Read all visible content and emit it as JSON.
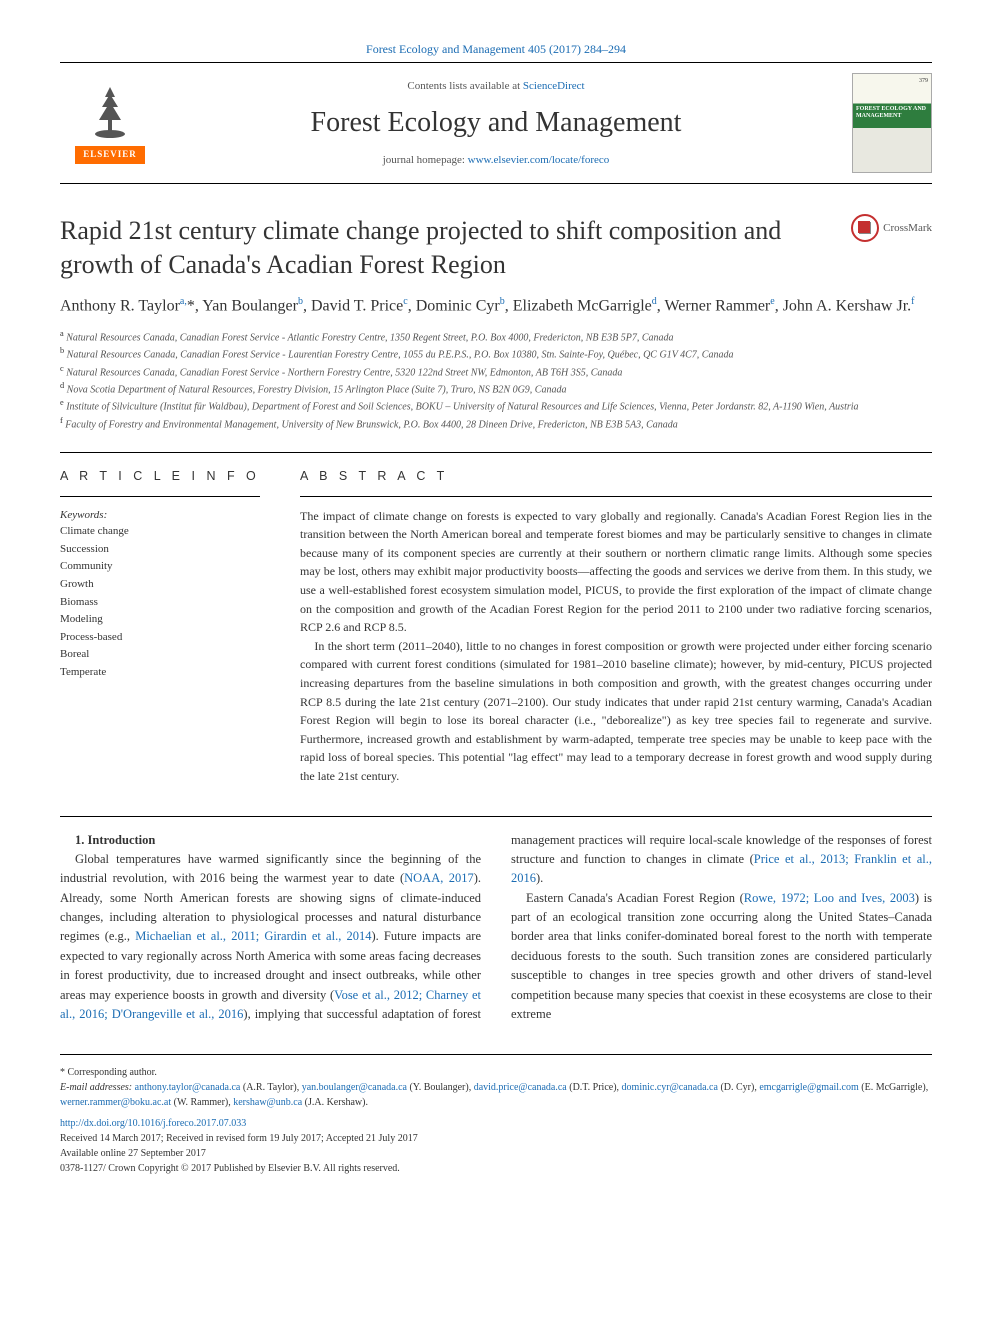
{
  "journal_header_link": "Forest Ecology and Management 405 (2017) 284–294",
  "header": {
    "contents_prefix": "Contents lists available at ",
    "contents_link": "ScienceDirect",
    "journal_name": "Forest Ecology and Management",
    "homepage_prefix": "journal homepage: ",
    "homepage_link": "www.elsevier.com/locate/foreco",
    "elsevier": "ELSEVIER",
    "cover_title": "FOREST ECOLOGY AND MANAGEMENT",
    "cover_vol": "379"
  },
  "crossmark_label": "CrossMark",
  "article": {
    "title": "Rapid 21st century climate change projected to shift composition and growth of Canada's Acadian Forest Region",
    "authors_html": "Anthony R. Taylor<sup>a,</sup>*, Yan Boulanger<sup>b</sup>, David T. Price<sup>c</sup>, Dominic Cyr<sup>b</sup>, Elizabeth McGarrigle<sup>d</sup>, Werner Rammer<sup>e</sup>, John A. Kershaw Jr.<sup>f</sup>"
  },
  "affiliations": [
    {
      "sup": "a",
      "text": "Natural Resources Canada, Canadian Forest Service - Atlantic Forestry Centre, 1350 Regent Street, P.O. Box 4000, Fredericton, NB E3B 5P7, Canada"
    },
    {
      "sup": "b",
      "text": "Natural Resources Canada, Canadian Forest Service - Laurentian Forestry Centre, 1055 du P.E.P.S., P.O. Box 10380, Stn. Sainte-Foy, Québec, QC G1V 4C7, Canada"
    },
    {
      "sup": "c",
      "text": "Natural Resources Canada, Canadian Forest Service - Northern Forestry Centre, 5320 122nd Street NW, Edmonton, AB T6H 3S5, Canada"
    },
    {
      "sup": "d",
      "text": "Nova Scotia Department of Natural Resources, Forestry Division, 15 Arlington Place (Suite 7), Truro, NS B2N 0G9, Canada"
    },
    {
      "sup": "e",
      "text": "Institute of Silviculture (Institut für Waldbau), Department of Forest and Soil Sciences, BOKU – University of Natural Resources and Life Sciences, Vienna, Peter Jordanstr. 82, A-1190 Wien, Austria"
    },
    {
      "sup": "f",
      "text": "Faculty of Forestry and Environmental Management, University of New Brunswick, P.O. Box 4400, 28 Dineen Drive, Fredericton, NB E3B 5A3, Canada"
    }
  ],
  "article_info_header": "A R T I C L E  I N F O",
  "abstract_header": "A B S T R A C T",
  "keywords_label": "Keywords:",
  "keywords": [
    "Climate change",
    "Succession",
    "Community",
    "Growth",
    "Biomass",
    "Modeling",
    "Process-based",
    "Boreal",
    "Temperate"
  ],
  "abstract": {
    "p1": "The impact of climate change on forests is expected to vary globally and regionally. Canada's Acadian Forest Region lies in the transition between the North American boreal and temperate forest biomes and may be particularly sensitive to changes in climate because many of its component species are currently at their southern or northern climatic range limits. Although some species may be lost, others may exhibit major productivity boosts—affecting the goods and services we derive from them. In this study, we use a well-established forest ecosystem simulation model, PICUS, to provide the first exploration of the impact of climate change on the composition and growth of the Acadian Forest Region for the period 2011 to 2100 under two radiative forcing scenarios, RCP 2.6 and RCP 8.5.",
    "p2": "In the short term (2011–2040), little to no changes in forest composition or growth were projected under either forcing scenario compared with current forest conditions (simulated for 1981–2010 baseline climate); however, by mid-century, PICUS projected increasing departures from the baseline simulations in both composition and growth, with the greatest changes occurring under RCP 8.5 during the late 21st century (2071–2100). Our study indicates that under rapid 21st century warming, Canada's Acadian Forest Region will begin to lose its boreal character (i.e., \"deborealize\") as key tree species fail to regenerate and survive. Furthermore, increased growth and establishment by warm-adapted, temperate tree species may be unable to keep pace with the rapid loss of boreal species. This potential \"lag effect\" may lead to a temporary decrease in forest growth and wood supply during the late 21st century."
  },
  "intro": {
    "heading": "1. Introduction",
    "p1_a": "Global temperatures have warmed significantly since the beginning of the industrial revolution, with 2016 being the warmest year to date (",
    "p1_cite1": "NOAA, 2017",
    "p1_b": "). Already, some North American forests are showing signs of climate-induced changes, including alteration to physiological processes and natural disturbance regimes (e.g., ",
    "p1_cite2": "Michaelian et al., 2011; Girardin et al., 2014",
    "p1_c": "). Future impacts are expected to vary regionally across North America with some areas facing decreases in forest productivity, due to increased drought and insect outbreaks, while other areas may experience boosts in growth and diversity (",
    "p1_cite3": "Vose et al., 2012;",
    "p1_cite4": "Charney et al., 2016; D'Orangeville et al., 2016",
    "p1_d": "), implying that successful adaptation of forest management practices will require local-scale knowledge of the responses of forest structure and function to changes in climate (",
    "p1_cite5": "Price et al., 2013; Franklin et al., 2016",
    "p1_e": ").",
    "p2_a": "Eastern Canada's Acadian Forest Region (",
    "p2_cite1": "Rowe, 1972; Loo and Ives, 2003",
    "p2_b": ") is part of an ecological transition zone occurring along the United States–Canada border area that links conifer-dominated boreal forest to the north with temperate deciduous forests to the south. Such transition zones are considered particularly susceptible to changes in tree species growth and other drivers of stand-level competition because many species that coexist in these ecosystems are close to their extreme"
  },
  "footer": {
    "corresponding": "* Corresponding author.",
    "email_label": "E-mail addresses: ",
    "emails": [
      {
        "addr": "anthony.taylor@canada.ca",
        "who": " (A.R. Taylor), "
      },
      {
        "addr": "yan.boulanger@canada.ca",
        "who": " (Y. Boulanger), "
      },
      {
        "addr": "david.price@canada.ca",
        "who": " (D.T. Price), "
      },
      {
        "addr": "dominic.cyr@canada.ca",
        "who": " (D. Cyr), "
      },
      {
        "addr": "emcgarrigle@gmail.com",
        "who": " (E. McGarrigle), "
      },
      {
        "addr": "werner.rammer@boku.ac.at",
        "who": " (W. Rammer), "
      },
      {
        "addr": "kershaw@unb.ca",
        "who": " (J.A. Kershaw)."
      }
    ],
    "doi": "http://dx.doi.org/10.1016/j.foreco.2017.07.033",
    "received": "Received 14 March 2017; Received in revised form 19 July 2017; Accepted 21 July 2017",
    "available": "Available online 27 September 2017",
    "copyright": "0378-1127/ Crown Copyright © 2017 Published by Elsevier B.V. All rights reserved."
  },
  "colors": {
    "link": "#1b6cb3",
    "elsevier_orange": "#ff6c00",
    "text": "#333333",
    "crossmark_ring": "#c42f2f"
  }
}
